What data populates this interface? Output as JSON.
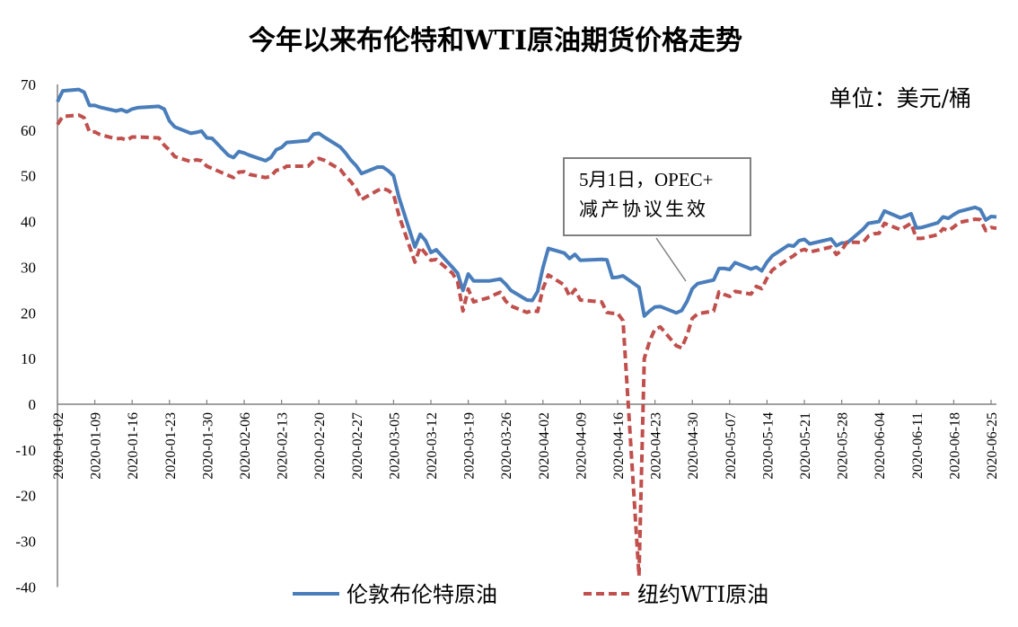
{
  "chart_data": {
    "type": "line",
    "title": "今年以来布伦特和WTI原油期货价格走势",
    "unit_label": "单位：美元/桶",
    "annotation": {
      "line1": "5月1日，OPEC+",
      "line2": "减产协议生效",
      "date": "2020-05-01"
    },
    "ylim": [
      -40,
      70
    ],
    "yticks": [
      70,
      60,
      50,
      40,
      30,
      20,
      10,
      0,
      -10,
      -20,
      -30,
      -40
    ],
    "xtick_labels": [
      "2020-01-02",
      "2020-01-09",
      "2020-01-16",
      "2020-01-23",
      "2020-01-30",
      "2020-02-06",
      "2020-02-13",
      "2020-02-20",
      "2020-02-27",
      "2020-03-05",
      "2020-03-12",
      "2020-03-19",
      "2020-03-26",
      "2020-04-02",
      "2020-04-09",
      "2020-04-16",
      "2020-04-23",
      "2020-04-30",
      "2020-05-07",
      "2020-05-14",
      "2020-05-21",
      "2020-05-28",
      "2020-06-04",
      "2020-06-11",
      "2020-06-18",
      "2020-06-25"
    ],
    "grid": false,
    "legend_position": "bottom",
    "x": [
      "2020-01-02",
      "2020-01-03",
      "2020-01-06",
      "2020-01-07",
      "2020-01-08",
      "2020-01-09",
      "2020-01-10",
      "2020-01-13",
      "2020-01-14",
      "2020-01-15",
      "2020-01-16",
      "2020-01-17",
      "2020-01-21",
      "2020-01-22",
      "2020-01-23",
      "2020-01-24",
      "2020-01-27",
      "2020-01-28",
      "2020-01-29",
      "2020-01-30",
      "2020-01-31",
      "2020-02-03",
      "2020-02-04",
      "2020-02-05",
      "2020-02-06",
      "2020-02-07",
      "2020-02-10",
      "2020-02-11",
      "2020-02-12",
      "2020-02-13",
      "2020-02-14",
      "2020-02-18",
      "2020-02-19",
      "2020-02-20",
      "2020-02-21",
      "2020-02-24",
      "2020-02-25",
      "2020-02-26",
      "2020-02-27",
      "2020-02-28",
      "2020-03-02",
      "2020-03-03",
      "2020-03-04",
      "2020-03-05",
      "2020-03-06",
      "2020-03-09",
      "2020-03-10",
      "2020-03-11",
      "2020-03-12",
      "2020-03-13",
      "2020-03-16",
      "2020-03-17",
      "2020-03-18",
      "2020-03-19",
      "2020-03-20",
      "2020-03-23",
      "2020-03-24",
      "2020-03-25",
      "2020-03-26",
      "2020-03-27",
      "2020-03-30",
      "2020-03-31",
      "2020-04-01",
      "2020-04-02",
      "2020-04-03",
      "2020-04-06",
      "2020-04-07",
      "2020-04-08",
      "2020-04-09",
      "2020-04-13",
      "2020-04-14",
      "2020-04-15",
      "2020-04-16",
      "2020-04-17",
      "2020-04-20",
      "2020-04-21",
      "2020-04-22",
      "2020-04-23",
      "2020-04-24",
      "2020-04-27",
      "2020-04-28",
      "2020-04-29",
      "2020-04-30",
      "2020-05-01",
      "2020-05-04",
      "2020-05-05",
      "2020-05-06",
      "2020-05-07",
      "2020-05-08",
      "2020-05-11",
      "2020-05-12",
      "2020-05-13",
      "2020-05-14",
      "2020-05-15",
      "2020-05-18",
      "2020-05-19",
      "2020-05-20",
      "2020-05-21",
      "2020-05-22",
      "2020-05-26",
      "2020-05-27",
      "2020-05-28",
      "2020-05-29",
      "2020-06-01",
      "2020-06-02",
      "2020-06-03",
      "2020-06-04",
      "2020-06-05",
      "2020-06-08",
      "2020-06-09",
      "2020-06-10",
      "2020-06-11",
      "2020-06-12",
      "2020-06-15",
      "2020-06-16",
      "2020-06-17",
      "2020-06-18",
      "2020-06-19",
      "2020-06-22",
      "2020-06-23",
      "2020-06-24",
      "2020-06-25",
      "2020-06-26"
    ],
    "series": [
      {
        "name": "伦敦布伦特原油",
        "color": "#4a7ebb",
        "style": "solid",
        "values": [
          66.2,
          68.6,
          68.9,
          68.3,
          65.4,
          65.4,
          65.0,
          64.2,
          64.5,
          64.0,
          64.6,
          64.9,
          65.2,
          64.6,
          62.0,
          60.7,
          59.3,
          59.5,
          59.8,
          58.3,
          58.2,
          54.5,
          54.0,
          55.3,
          55.0,
          54.5,
          53.3,
          54.0,
          55.7,
          56.2,
          57.3,
          57.7,
          59.1,
          59.3,
          58.5,
          56.3,
          55.0,
          53.4,
          52.2,
          50.5,
          51.9,
          51.9,
          51.1,
          50.0,
          45.3,
          34.4,
          37.2,
          35.8,
          33.2,
          33.8,
          30.0,
          28.7,
          24.9,
          28.5,
          27.0,
          27.0,
          27.2,
          27.4,
          26.3,
          24.9,
          22.8,
          22.7,
          24.7,
          29.9,
          34.1,
          33.1,
          31.9,
          32.8,
          31.5,
          31.7,
          31.6,
          27.7,
          27.8,
          28.1,
          25.6,
          19.3,
          20.4,
          21.3,
          21.4,
          20.0,
          20.5,
          22.5,
          25.3,
          26.4,
          27.2,
          29.7,
          29.7,
          29.5,
          31.0,
          29.6,
          30.0,
          29.2,
          31.1,
          32.5,
          34.8,
          34.6,
          35.8,
          36.1,
          35.1,
          36.2,
          34.7,
          35.3,
          35.3,
          38.3,
          39.6,
          39.8,
          40.0,
          42.3,
          40.8,
          41.2,
          41.7,
          38.6,
          38.7,
          39.7,
          41.0,
          40.7,
          41.5,
          42.2,
          43.1,
          42.6,
          40.3,
          41.1,
          41.0
        ]
      },
      {
        "name": "纽约WTI原油",
        "color": "#c0504d",
        "style": "dashed",
        "values": [
          61.2,
          63.0,
          63.3,
          62.7,
          59.6,
          59.6,
          59.0,
          58.1,
          58.2,
          57.8,
          58.5,
          58.5,
          58.3,
          56.7,
          55.6,
          54.2,
          53.1,
          53.5,
          53.3,
          52.1,
          51.6,
          50.1,
          49.6,
          50.8,
          50.9,
          50.3,
          49.6,
          49.9,
          51.2,
          51.4,
          52.1,
          52.1,
          53.3,
          53.8,
          53.4,
          51.4,
          49.9,
          48.7,
          47.1,
          44.8,
          46.8,
          47.2,
          46.8,
          45.9,
          41.3,
          31.1,
          34.4,
          33.0,
          31.5,
          31.7,
          28.7,
          26.9,
          20.4,
          25.2,
          22.4,
          23.4,
          24.0,
          24.5,
          22.6,
          21.5,
          20.1,
          20.5,
          20.3,
          25.3,
          28.3,
          26.1,
          23.6,
          25.1,
          22.8,
          22.4,
          20.1,
          19.9,
          19.9,
          18.3,
          -37.6,
          10.0,
          13.8,
          16.5,
          16.9,
          12.8,
          12.3,
          15.1,
          18.8,
          19.8,
          20.4,
          24.6,
          24.0,
          23.6,
          24.7,
          24.1,
          25.8,
          25.3,
          27.6,
          29.4,
          31.8,
          32.5,
          33.5,
          33.9,
          33.3,
          34.4,
          32.8,
          33.7,
          35.5,
          35.4,
          36.8,
          37.3,
          37.4,
          39.6,
          38.2,
          38.9,
          39.6,
          36.3,
          36.3,
          37.1,
          38.4,
          38.0,
          38.8,
          39.8,
          40.5,
          40.4,
          38.0,
          38.7,
          38.5
        ]
      }
    ]
  }
}
